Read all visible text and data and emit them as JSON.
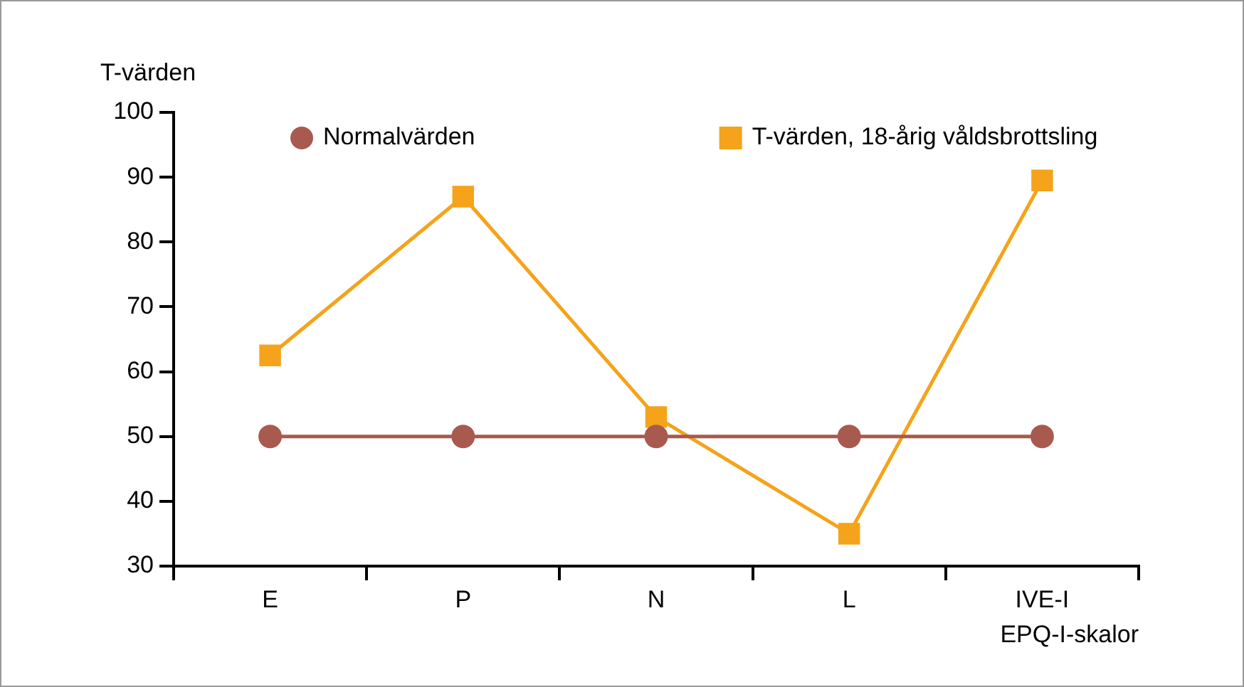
{
  "chart_data": {
    "type": "line",
    "xlabel": "EPQ-I-skalor",
    "ylabel": "T-värden",
    "categories": [
      "E",
      "P",
      "N",
      "L",
      "IVE-I"
    ],
    "series": [
      {
        "name": "Normalvärden",
        "color": "#a85a4e",
        "marker": "circle",
        "values": [
          50,
          50,
          50,
          50,
          50
        ]
      },
      {
        "name": "T-värden, 18-årig våldsbrottsling",
        "color": "#f5a31a",
        "marker": "square",
        "values": [
          62.5,
          87,
          53,
          35,
          89.5
        ]
      }
    ],
    "ylim": [
      30,
      100
    ],
    "yticks": [
      30,
      40,
      50,
      60,
      70,
      80,
      90,
      100
    ],
    "legend": "top",
    "line_style": "solid"
  }
}
